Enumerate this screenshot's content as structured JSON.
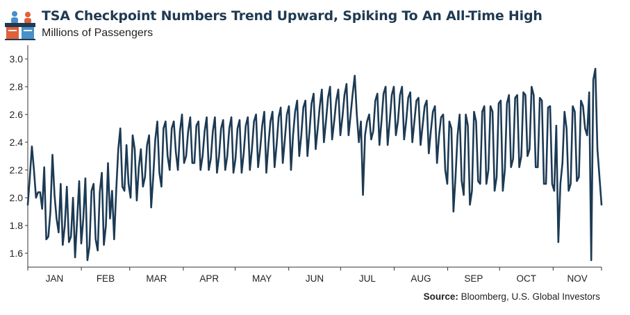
{
  "title": "TSA Checkpoint Numbers Trend Upward, Spiking To An All-Time High",
  "subtitle": "Millions of Passengers",
  "source_label": "Source:",
  "source_text": "Bloomberg, U.S. Global Investors",
  "icon": "travelers-at-checkpoint-icon",
  "colors": {
    "line": "#1c3a54",
    "title": "#1f3a52",
    "logo_red": "#e0603a",
    "logo_blue": "#4a90c8"
  },
  "chart_data": {
    "type": "line",
    "title": "TSA Checkpoint Numbers Trend Upward, Spiking To An All-Time High",
    "ylabel": "Millions of Passengers",
    "xlabel": "",
    "ylim": [
      1.5,
      3.1
    ],
    "yticks": [
      "1.6",
      "1.8",
      "2.0",
      "2.2",
      "2.4",
      "2.6",
      "2.8",
      "3.0"
    ],
    "grid": false,
    "x_tick_labels": [
      "JAN",
      "FEB",
      "MAR",
      "APR",
      "MAY",
      "JUN",
      "JUL",
      "AUG",
      "SEP",
      "OCT",
      "NOV"
    ],
    "x_range": [
      "2023-01-01",
      "2023-11-29"
    ],
    "series": [
      {
        "values": [
          1.95,
          2.15,
          2.37,
          2.2,
          2.0,
          2.04,
          2.04,
          1.92,
          2.22,
          1.7,
          1.72,
          1.9,
          2.31,
          2.02,
          1.85,
          1.75,
          2.1,
          1.66,
          1.8,
          2.08,
          1.68,
          1.72,
          2.0,
          1.57,
          1.84,
          2.12,
          1.67,
          1.85,
          2.14,
          1.55,
          1.65,
          2.05,
          2.1,
          1.7,
          1.62,
          2.04,
          2.18,
          1.66,
          1.8,
          2.25,
          1.85,
          2.05,
          1.7,
          2.05,
          2.35,
          2.5,
          2.08,
          2.05,
          2.38,
          2.1,
          2.0,
          2.45,
          2.35,
          1.98,
          2.22,
          2.35,
          2.08,
          2.15,
          2.38,
          2.45,
          1.93,
          2.15,
          2.42,
          2.55,
          2.18,
          2.08,
          2.5,
          2.55,
          2.3,
          2.2,
          2.5,
          2.55,
          2.33,
          2.2,
          2.48,
          2.6,
          2.25,
          2.3,
          2.48,
          2.58,
          2.25,
          2.25,
          2.52,
          2.55,
          2.2,
          2.3,
          2.48,
          2.58,
          2.2,
          2.28,
          2.48,
          2.58,
          2.18,
          2.3,
          2.5,
          2.56,
          2.2,
          2.3,
          2.5,
          2.58,
          2.18,
          2.28,
          2.5,
          2.56,
          2.18,
          2.32,
          2.52,
          2.58,
          2.2,
          2.35,
          2.55,
          2.6,
          2.22,
          2.35,
          2.52,
          2.62,
          2.18,
          2.38,
          2.55,
          2.62,
          2.22,
          2.38,
          2.58,
          2.65,
          2.25,
          2.42,
          2.6,
          2.66,
          2.2,
          2.45,
          2.62,
          2.7,
          2.3,
          2.45,
          2.65,
          2.7,
          2.3,
          2.48,
          2.68,
          2.75,
          2.35,
          2.5,
          2.66,
          2.78,
          2.4,
          2.55,
          2.72,
          2.8,
          2.42,
          2.55,
          2.7,
          2.78,
          2.45,
          2.58,
          2.74,
          2.82,
          2.45,
          2.6,
          2.75,
          2.88,
          2.6,
          2.4,
          2.55,
          2.02,
          2.45,
          2.55,
          2.6,
          2.42,
          2.48,
          2.7,
          2.75,
          2.38,
          2.55,
          2.75,
          2.8,
          2.38,
          2.55,
          2.74,
          2.8,
          2.45,
          2.55,
          2.74,
          2.8,
          2.42,
          2.55,
          2.72,
          2.76,
          2.4,
          2.55,
          2.7,
          2.72,
          2.38,
          2.52,
          2.66,
          2.7,
          2.32,
          2.48,
          2.62,
          2.66,
          2.25,
          2.45,
          2.58,
          2.6,
          2.2,
          2.1,
          2.55,
          2.5,
          1.9,
          2.15,
          2.45,
          2.6,
          2.12,
          2.02,
          2.6,
          2.52,
          1.95,
          2.05,
          2.62,
          2.55,
          2.12,
          2.1,
          2.62,
          2.66,
          2.1,
          2.2,
          2.66,
          2.62,
          2.05,
          2.15,
          2.68,
          2.7,
          2.05,
          2.2,
          2.68,
          2.74,
          2.22,
          2.28,
          2.72,
          2.74,
          2.22,
          2.3,
          2.76,
          2.74,
          2.3,
          2.35,
          2.8,
          2.74,
          2.22,
          2.22,
          2.72,
          2.7,
          2.1,
          2.1,
          2.65,
          2.66,
          2.1,
          2.05,
          2.52,
          1.68,
          2.1,
          2.25,
          2.62,
          2.5,
          2.05,
          2.1,
          2.66,
          2.62,
          2.12,
          2.15,
          2.7,
          2.66,
          2.5,
          2.45,
          2.76,
          1.55,
          2.85,
          2.93,
          2.35,
          2.15,
          1.95
        ]
      }
    ]
  }
}
